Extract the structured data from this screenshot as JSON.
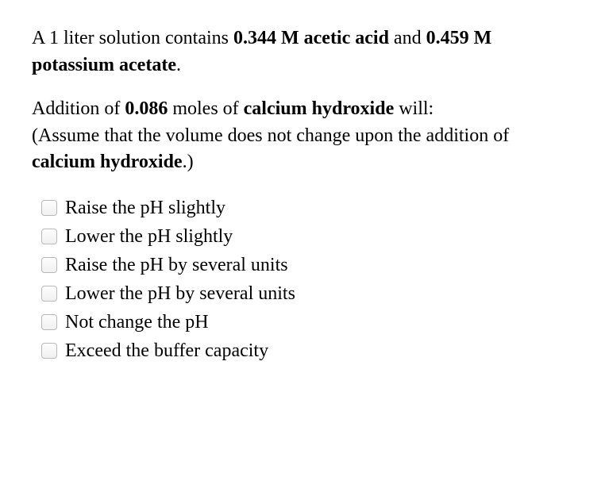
{
  "intro": {
    "volume_text": "A 1 liter solution contains ",
    "acid_conc": "0.344 M acetic acid",
    "and_text": " and ",
    "base_conc": "0.459 M potassium acetate",
    "period": "."
  },
  "addition": {
    "lead": "Addition of ",
    "moles": "0.086",
    "moles_unit": " moles of ",
    "reagent": "calcium hydroxide",
    "tail": " will:"
  },
  "assume": {
    "open": "(Assume that the volume does not change upon the addition of ",
    "reagent": "calcium hydroxide",
    "close": ".)"
  },
  "options": [
    "Raise the pH slightly",
    "Lower the pH slightly",
    "Raise the pH by several units",
    "Lower the pH by several units",
    "Not change the pH",
    "Exceed the buffer capacity"
  ]
}
